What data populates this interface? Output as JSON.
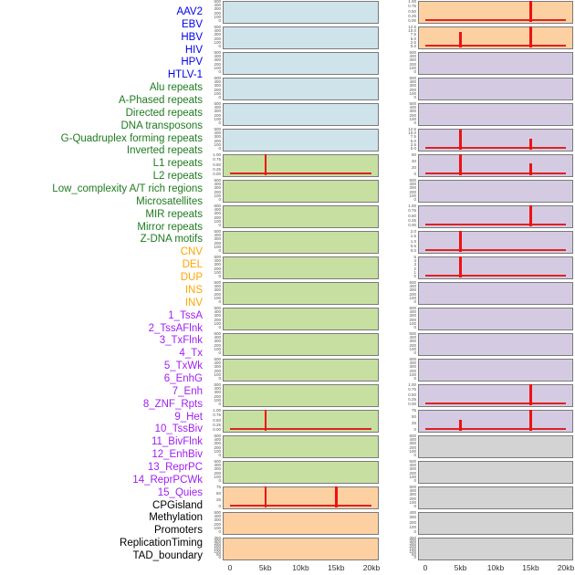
{
  "chart_data": {
    "type": "area",
    "title": "",
    "xlabel": "",
    "ylabel": "",
    "x_axis": {
      "tick_labels": [
        "0",
        "5kb",
        "10kb",
        "15kb",
        "20kb"
      ],
      "range_kb": [
        0,
        20
      ]
    },
    "layout": {
      "columns": 2,
      "rows_per_column": 22,
      "fill_order": "column-major",
      "labels_position": "left",
      "grid": false
    },
    "colors": {
      "label": {
        "virus": "#0000ee",
        "repeat": "#1e7b1e",
        "variant": "#ffa500",
        "chromatin": "#a020f0",
        "other": "#000000"
      },
      "panel": {
        "virus": "#cfe3eb",
        "repeat": "#c8dfa2",
        "variant": "#fdd0a2",
        "chromatin": "#d4cbe2",
        "other": "#d3d3d3"
      },
      "spike": "#ee1111",
      "baseline": "#dd2222",
      "panel_border": "#7a7a7a",
      "tick_text": "#555555",
      "axis_text": "#333333"
    },
    "tracks": [
      {
        "name": "AAV2",
        "category": "virus",
        "yticks": [
          "500",
          "400",
          "300",
          "200",
          "100",
          "0"
        ],
        "ymax": 500,
        "baseline": false,
        "spikes": []
      },
      {
        "name": "EBV",
        "category": "virus",
        "yticks": [
          "500",
          "400",
          "300",
          "200",
          "100",
          "0"
        ],
        "ymax": 500,
        "baseline": false,
        "spikes": []
      },
      {
        "name": "HBV",
        "category": "virus",
        "yticks": [
          "500",
          "400",
          "300",
          "200",
          "100",
          "0"
        ],
        "ymax": 500,
        "baseline": false,
        "spikes": []
      },
      {
        "name": "HIV",
        "category": "virus",
        "yticks": [
          "500",
          "400",
          "300",
          "200",
          "100",
          "0"
        ],
        "ymax": 500,
        "baseline": false,
        "spikes": []
      },
      {
        "name": "HPV",
        "category": "virus",
        "yticks": [
          "500",
          "400",
          "300",
          "200",
          "100",
          "0"
        ],
        "ymax": 500,
        "baseline": false,
        "spikes": []
      },
      {
        "name": "HTLV-1",
        "category": "virus",
        "yticks": [
          "500",
          "400",
          "300",
          "200",
          "100",
          "0"
        ],
        "ymax": 500,
        "baseline": false,
        "spikes": []
      },
      {
        "name": "Alu repeats",
        "category": "repeat",
        "yticks": [
          "1.00",
          "0.75",
          "0.50",
          "0.25",
          "0.00"
        ],
        "ymax": 1.0,
        "baseline": true,
        "spikes": [
          {
            "x_kb": 5,
            "value": 1.0
          }
        ]
      },
      {
        "name": "A-Phased repeats",
        "category": "repeat",
        "yticks": [
          "500",
          "400",
          "300",
          "200",
          "100",
          "0"
        ],
        "ymax": 500,
        "baseline": false,
        "spikes": []
      },
      {
        "name": "Directed repeats",
        "category": "repeat",
        "yticks": [
          "500",
          "400",
          "300",
          "200",
          "100",
          "0"
        ],
        "ymax": 500,
        "baseline": false,
        "spikes": []
      },
      {
        "name": "DNA transposons",
        "category": "repeat",
        "yticks": [
          "500",
          "400",
          "300",
          "200",
          "100",
          "0"
        ],
        "ymax": 500,
        "baseline": false,
        "spikes": []
      },
      {
        "name": "G-Quadruplex forming repeats",
        "category": "repeat",
        "yticks": [
          "500",
          "400",
          "300",
          "200",
          "100",
          "0"
        ],
        "ymax": 500,
        "baseline": false,
        "spikes": []
      },
      {
        "name": "Inverted repeats",
        "category": "repeat",
        "yticks": [
          "500",
          "400",
          "300",
          "200",
          "100",
          "0"
        ],
        "ymax": 500,
        "baseline": false,
        "spikes": []
      },
      {
        "name": "L1 repeats",
        "category": "repeat",
        "yticks": [
          "500",
          "400",
          "300",
          "200",
          "100",
          "0"
        ],
        "ymax": 500,
        "baseline": false,
        "spikes": []
      },
      {
        "name": "L2 repeats",
        "category": "repeat",
        "yticks": [
          "500",
          "400",
          "300",
          "200",
          "100",
          "0"
        ],
        "ymax": 500,
        "baseline": false,
        "spikes": []
      },
      {
        "name": "Low_complexity A/T rich regions",
        "category": "repeat",
        "yticks": [
          "500",
          "400",
          "300",
          "200",
          "100",
          "0"
        ],
        "ymax": 500,
        "baseline": false,
        "spikes": []
      },
      {
        "name": "Microsatellites",
        "category": "repeat",
        "yticks": [
          "500",
          "400",
          "300",
          "200",
          "100",
          "0"
        ],
        "ymax": 500,
        "baseline": false,
        "spikes": []
      },
      {
        "name": "MIR repeats",
        "category": "repeat",
        "yticks": [
          "1.00",
          "0.75",
          "0.50",
          "0.25",
          "0.00"
        ],
        "ymax": 1.0,
        "baseline": true,
        "spikes": [
          {
            "x_kb": 5,
            "value": 1.0
          }
        ]
      },
      {
        "name": "Mirror repeats",
        "category": "repeat",
        "yticks": [
          "500",
          "400",
          "300",
          "200",
          "100",
          "0"
        ],
        "ymax": 500,
        "baseline": false,
        "spikes": []
      },
      {
        "name": "Z-DNA motifs",
        "category": "repeat",
        "yticks": [
          "500",
          "400",
          "300",
          "200",
          "100",
          "0"
        ],
        "ymax": 500,
        "baseline": false,
        "spikes": []
      },
      {
        "name": "CNV",
        "category": "variant",
        "yticks": [
          "75",
          "50",
          "25",
          "0"
        ],
        "ymax": 75,
        "baseline": true,
        "spikes": [
          {
            "x_kb": 5,
            "value": 75
          },
          {
            "x_kb": 15,
            "value": 75
          }
        ]
      },
      {
        "name": "DEL",
        "category": "variant",
        "yticks": [
          "500",
          "400",
          "300",
          "200",
          "100",
          "0"
        ],
        "ymax": 500,
        "baseline": false,
        "spikes": []
      },
      {
        "name": "DUP",
        "category": "variant",
        "yticks": [
          "350",
          "300",
          "250",
          "200",
          "150",
          "100",
          "50",
          "0"
        ],
        "ymax": 350,
        "baseline": false,
        "spikes": []
      },
      {
        "name": "INS",
        "category": "variant",
        "yticks": [
          "1.00",
          "0.75",
          "0.50",
          "0.25",
          "0.00"
        ],
        "ymax": 1.0,
        "baseline": true,
        "spikes": [
          {
            "x_kb": 15,
            "value": 1.0
          }
        ]
      },
      {
        "name": "INV",
        "category": "variant",
        "yticks": [
          "12.5",
          "10.0",
          "7.5",
          "5.0",
          "2.5",
          "0.0"
        ],
        "ymax": 12.5,
        "baseline": true,
        "spikes": [
          {
            "x_kb": 5,
            "value": 9.5
          },
          {
            "x_kb": 15,
            "value": 12.5
          }
        ]
      },
      {
        "name": "1_TssA",
        "category": "chromatin",
        "yticks": [
          "500",
          "400",
          "300",
          "200",
          "100",
          "0"
        ],
        "ymax": 500,
        "baseline": false,
        "spikes": []
      },
      {
        "name": "2_TssAFlnk",
        "category": "chromatin",
        "yticks": [
          "500",
          "400",
          "300",
          "200",
          "100",
          "0"
        ],
        "ymax": 500,
        "baseline": false,
        "spikes": []
      },
      {
        "name": "3_TxFlnk",
        "category": "chromatin",
        "yticks": [
          "500",
          "400",
          "300",
          "200",
          "100",
          "0"
        ],
        "ymax": 500,
        "baseline": false,
        "spikes": []
      },
      {
        "name": "4_Tx",
        "category": "chromatin",
        "yticks": [
          "12.5",
          "10.0",
          "7.5",
          "5.0",
          "2.5",
          "0.0"
        ],
        "ymax": 12.5,
        "baseline": true,
        "spikes": [
          {
            "x_kb": 5,
            "value": 12.0
          },
          {
            "x_kb": 15,
            "value": 6.5
          }
        ]
      },
      {
        "name": "5_TxWk",
        "category": "chromatin",
        "yticks": [
          "60",
          "40",
          "20",
          "0"
        ],
        "ymax": 60,
        "baseline": true,
        "spikes": [
          {
            "x_kb": 5,
            "value": 60
          },
          {
            "x_kb": 15,
            "value": 33
          }
        ]
      },
      {
        "name": "6_EnhG",
        "category": "chromatin",
        "yticks": [
          "500",
          "400",
          "300",
          "200",
          "100",
          "0"
        ],
        "ymax": 500,
        "baseline": false,
        "spikes": []
      },
      {
        "name": "7_Enh",
        "category": "chromatin",
        "yticks": [
          "1.00",
          "0.75",
          "0.50",
          "0.25",
          "0.00"
        ],
        "ymax": 1.0,
        "baseline": true,
        "spikes": [
          {
            "x_kb": 15,
            "value": 1.0
          }
        ]
      },
      {
        "name": "8_ZNF_Rpts",
        "category": "chromatin",
        "yticks": [
          "2.0",
          "1.5",
          "1.0",
          "0.5",
          "0.0"
        ],
        "ymax": 2.0,
        "baseline": true,
        "spikes": [
          {
            "x_kb": 5,
            "value": 2.0
          }
        ]
      },
      {
        "name": "9_Het",
        "category": "chromatin",
        "yticks": [
          "5",
          "4",
          "3",
          "2",
          "1",
          "0"
        ],
        "ymax": 5,
        "baseline": true,
        "spikes": [
          {
            "x_kb": 5,
            "value": 5
          }
        ]
      },
      {
        "name": "10_TssBiv",
        "category": "chromatin",
        "yticks": [
          "500",
          "400",
          "300",
          "200",
          "100",
          "0"
        ],
        "ymax": 500,
        "baseline": false,
        "spikes": []
      },
      {
        "name": "11_BivFlnk",
        "category": "chromatin",
        "yticks": [
          "500",
          "400",
          "300",
          "200",
          "100",
          "0"
        ],
        "ymax": 500,
        "baseline": false,
        "spikes": []
      },
      {
        "name": "12_EnhBiv",
        "category": "chromatin",
        "yticks": [
          "500",
          "400",
          "300",
          "200",
          "100",
          "0"
        ],
        "ymax": 500,
        "baseline": false,
        "spikes": []
      },
      {
        "name": "13_ReprPC",
        "category": "chromatin",
        "yticks": [
          "500",
          "400",
          "300",
          "200",
          "100",
          "0"
        ],
        "ymax": 500,
        "baseline": false,
        "spikes": []
      },
      {
        "name": "14_ReprPCWk",
        "category": "chromatin",
        "yticks": [
          "1.00",
          "0.75",
          "0.50",
          "0.25",
          "0.00"
        ],
        "ymax": 1.0,
        "baseline": true,
        "spikes": [
          {
            "x_kb": 15,
            "value": 1.0
          }
        ]
      },
      {
        "name": "15_Quies",
        "category": "chromatin",
        "yticks": [
          "75",
          "50",
          "25",
          "0"
        ],
        "ymax": 75,
        "baseline": true,
        "spikes": [
          {
            "x_kb": 5,
            "value": 38
          },
          {
            "x_kb": 15,
            "value": 75
          }
        ]
      },
      {
        "name": "CPGisland",
        "category": "other",
        "yticks": [
          "500",
          "400",
          "300",
          "200",
          "100",
          "0"
        ],
        "ymax": 500,
        "baseline": false,
        "spikes": []
      },
      {
        "name": "Methylation",
        "category": "other",
        "yticks": [
          "500",
          "400",
          "300",
          "200",
          "100",
          "0"
        ],
        "ymax": 500,
        "baseline": false,
        "spikes": []
      },
      {
        "name": "Promoters",
        "category": "other",
        "yticks": [
          "500",
          "400",
          "300",
          "200",
          "100",
          "0"
        ],
        "ymax": 500,
        "baseline": false,
        "spikes": []
      },
      {
        "name": "ReplicationTiming",
        "category": "other",
        "yticks": [
          "400",
          "300",
          "200",
          "100",
          "0"
        ],
        "ymax": 400,
        "baseline": false,
        "spikes": []
      },
      {
        "name": "TAD_boundary",
        "category": "other",
        "yticks": [
          "350",
          "300",
          "250",
          "200",
          "150",
          "100",
          "50",
          "0"
        ],
        "ymax": 350,
        "baseline": false,
        "spikes": []
      }
    ]
  }
}
